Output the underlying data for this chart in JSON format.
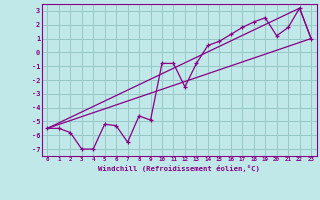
{
  "xlabel": "Windchill (Refroidissement éolien,°C)",
  "bg_color": "#c0e8e8",
  "grid_color": "#98c8c8",
  "line_color": "#880088",
  "xlim": [
    -0.5,
    23.5
  ],
  "ylim": [
    -7.5,
    3.5
  ],
  "xticks": [
    0,
    1,
    2,
    3,
    4,
    5,
    6,
    7,
    8,
    9,
    10,
    11,
    12,
    13,
    14,
    15,
    16,
    17,
    18,
    19,
    20,
    21,
    22,
    23
  ],
  "yticks": [
    -7,
    -6,
    -5,
    -4,
    -3,
    -2,
    -1,
    0,
    1,
    2,
    3
  ],
  "zigzag_x": [
    0,
    1,
    2,
    3,
    4,
    5,
    6,
    7,
    8,
    9,
    10,
    11,
    12,
    13,
    14,
    15,
    16,
    17,
    18,
    19,
    20,
    21,
    22,
    23
  ],
  "zigzag_y": [
    -5.5,
    -5.5,
    -5.8,
    -7.0,
    -7.0,
    -5.2,
    -5.3,
    -6.5,
    -4.6,
    -4.9,
    -0.8,
    -0.8,
    -2.5,
    -0.8,
    0.5,
    0.8,
    1.3,
    1.8,
    2.2,
    2.5,
    1.2,
    1.8,
    3.2,
    1.0
  ],
  "line1_x": [
    0,
    23
  ],
  "line1_y": [
    -5.5,
    1.0
  ],
  "line2_x": [
    0,
    22,
    23
  ],
  "line2_y": [
    -5.5,
    3.2,
    1.0
  ]
}
